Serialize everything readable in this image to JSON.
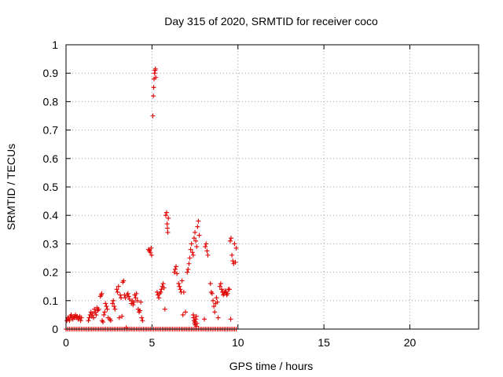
{
  "chart_data": {
    "type": "scatter",
    "title": "Day 315 of 2020, SRMTID for receiver coco",
    "xlabel": "GPS time / hours",
    "ylabel": "SRMTID / TECUs",
    "xlim": [
      0,
      24
    ],
    "ylim": [
      0,
      1
    ],
    "xticks": [
      0,
      5,
      10,
      15,
      20
    ],
    "xtick_labels": [
      "0",
      "5",
      "10",
      "15",
      "20"
    ],
    "yticks": [
      0,
      0.1,
      0.2,
      0.3,
      0.4,
      0.5,
      0.6,
      0.7,
      0.8,
      0.9,
      1
    ],
    "ytick_labels": [
      "0",
      "0.1",
      "0.2",
      "0.3",
      "0.4",
      "0.5",
      "0.6",
      "0.7",
      "0.8",
      "0.9",
      "1"
    ],
    "grid": true,
    "marker": "+",
    "color": "#e00000",
    "zero_baseline": {
      "x_start": 0,
      "x_end": 9.9,
      "step": 0.1,
      "y": 0
    },
    "series": [
      {
        "name": "SRMTID",
        "points": [
          [
            0.05,
            0.03
          ],
          [
            0.1,
            0.04
          ],
          [
            0.15,
            0.035
          ],
          [
            0.2,
            0.03
          ],
          [
            0.25,
            0.045
          ],
          [
            0.3,
            0.05
          ],
          [
            0.35,
            0.04
          ],
          [
            0.4,
            0.035
          ],
          [
            0.45,
            0.045
          ],
          [
            0.5,
            0.04
          ],
          [
            0.55,
            0.05
          ],
          [
            0.6,
            0.04
          ],
          [
            0.65,
            0.045
          ],
          [
            0.7,
            0.035
          ],
          [
            0.75,
            0.04
          ],
          [
            0.8,
            0.045
          ],
          [
            0.85,
            0.03
          ],
          [
            0.9,
            0.04
          ],
          [
            1.3,
            0.03
          ],
          [
            1.35,
            0.04
          ],
          [
            1.4,
            0.05
          ],
          [
            1.45,
            0.06
          ],
          [
            1.5,
            0.045
          ],
          [
            1.55,
            0.055
          ],
          [
            1.6,
            0.04
          ],
          [
            1.65,
            0.07
          ],
          [
            1.7,
            0.06
          ],
          [
            1.75,
            0.05
          ],
          [
            1.8,
            0.075
          ],
          [
            1.85,
            0.065
          ],
          [
            1.9,
            0.07
          ],
          [
            2.0,
            0.115
          ],
          [
            2.05,
            0.12
          ],
          [
            2.08,
            0.125
          ],
          [
            2.1,
            0.03
          ],
          [
            2.15,
            0.025
          ],
          [
            2.2,
            0.05
          ],
          [
            2.25,
            0.06
          ],
          [
            2.3,
            0.09
          ],
          [
            2.35,
            0.08
          ],
          [
            2.4,
            0.07
          ],
          [
            2.45,
            0.04
          ],
          [
            2.55,
            0.035
          ],
          [
            2.6,
            0.03
          ],
          [
            2.7,
            0.09
          ],
          [
            2.75,
            0.1
          ],
          [
            2.8,
            0.08
          ],
          [
            2.85,
            0.07
          ],
          [
            2.95,
            0.14
          ],
          [
            3.0,
            0.13
          ],
          [
            3.05,
            0.15
          ],
          [
            3.1,
            0.04
          ],
          [
            3.15,
            0.12
          ],
          [
            3.2,
            0.11
          ],
          [
            3.25,
            0.045
          ],
          [
            3.3,
            0.165
          ],
          [
            3.35,
            0.17
          ],
          [
            3.4,
            0.12
          ],
          [
            3.45,
            0.11
          ],
          [
            3.5,
            0.005
          ],
          [
            3.55,
            0.12
          ],
          [
            3.6,
            0.125
          ],
          [
            3.65,
            0.115
          ],
          [
            3.7,
            0.105
          ],
          [
            3.8,
            0.09
          ],
          [
            3.85,
            0.1
          ],
          [
            3.9,
            0.085
          ],
          [
            3.95,
            0.095
          ],
          [
            4.0,
            0.12
          ],
          [
            4.05,
            0.11
          ],
          [
            4.1,
            0.125
          ],
          [
            4.15,
            0.1
          ],
          [
            4.2,
            0.07
          ],
          [
            4.25,
            0.06
          ],
          [
            4.3,
            0.065
          ],
          [
            4.35,
            0.095
          ],
          [
            4.4,
            0.04
          ],
          [
            4.45,
            0.03
          ],
          [
            4.8,
            0.28
          ],
          [
            4.85,
            0.275
          ],
          [
            4.9,
            0.27
          ],
          [
            4.95,
            0.285
          ],
          [
            4.98,
            0.26
          ],
          [
            5.05,
            0.75
          ],
          [
            5.08,
            0.82
          ],
          [
            5.1,
            0.85
          ],
          [
            5.12,
            0.88
          ],
          [
            5.15,
            0.9
          ],
          [
            5.18,
            0.91
          ],
          [
            5.2,
            0.915
          ],
          [
            5.22,
            0.885
          ],
          [
            5.3,
            0.13
          ],
          [
            5.35,
            0.12
          ],
          [
            5.4,
            0.11
          ],
          [
            5.45,
            0.125
          ],
          [
            5.5,
            0.13
          ],
          [
            5.55,
            0.14
          ],
          [
            5.6,
            0.15
          ],
          [
            5.65,
            0.16
          ],
          [
            5.7,
            0.145
          ],
          [
            5.8,
            0.4
          ],
          [
            5.85,
            0.41
          ],
          [
            5.88,
            0.37
          ],
          [
            5.9,
            0.355
          ],
          [
            5.92,
            0.34
          ],
          [
            5.95,
            0.39
          ],
          [
            5.75,
            0.07
          ],
          [
            6.3,
            0.2
          ],
          [
            6.35,
            0.21
          ],
          [
            6.4,
            0.22
          ],
          [
            6.45,
            0.195
          ],
          [
            6.55,
            0.16
          ],
          [
            6.6,
            0.15
          ],
          [
            6.65,
            0.14
          ],
          [
            6.7,
            0.13
          ],
          [
            6.75,
            0.17
          ],
          [
            6.8,
            0.05
          ],
          [
            6.85,
            0.13
          ],
          [
            6.95,
            0.06
          ],
          [
            7.05,
            0.2
          ],
          [
            7.1,
            0.21
          ],
          [
            7.15,
            0.23
          ],
          [
            7.2,
            0.25
          ],
          [
            7.25,
            0.28
          ],
          [
            7.3,
            0.3
          ],
          [
            7.35,
            0.27
          ],
          [
            7.4,
            0.26
          ],
          [
            7.45,
            0.32
          ],
          [
            7.5,
            0.34
          ],
          [
            7.55,
            0.31
          ],
          [
            7.6,
            0.29
          ],
          [
            7.65,
            0.36
          ],
          [
            7.7,
            0.38
          ],
          [
            7.75,
            0.33
          ],
          [
            7.4,
            0.05
          ],
          [
            7.42,
            0.04
          ],
          [
            7.45,
            0.03
          ],
          [
            7.48,
            0.02
          ],
          [
            7.5,
            0.025
          ],
          [
            7.52,
            0.015
          ],
          [
            7.55,
            0.035
          ],
          [
            7.58,
            0.045
          ],
          [
            7.6,
            0.01
          ],
          [
            7.62,
            0.02
          ],
          [
            8.1,
            0.29
          ],
          [
            8.15,
            0.3
          ],
          [
            8.2,
            0.275
          ],
          [
            8.25,
            0.26
          ],
          [
            8.05,
            0.035
          ],
          [
            8.4,
            0.16
          ],
          [
            8.45,
            0.13
          ],
          [
            8.5,
            0.125
          ],
          [
            8.55,
            0.1
          ],
          [
            8.6,
            0.08
          ],
          [
            8.65,
            0.06
          ],
          [
            8.7,
            0.09
          ],
          [
            8.75,
            0.11
          ],
          [
            8.8,
            0.095
          ],
          [
            8.85,
            0.04
          ],
          [
            8.95,
            0.15
          ],
          [
            9.0,
            0.16
          ],
          [
            9.05,
            0.14
          ],
          [
            9.1,
            0.13
          ],
          [
            9.15,
            0.12
          ],
          [
            9.2,
            0.125
          ],
          [
            9.25,
            0.135
          ],
          [
            9.3,
            0.13
          ],
          [
            9.35,
            0.12
          ],
          [
            9.4,
            0.125
          ],
          [
            9.45,
            0.14
          ],
          [
            9.55,
            0.31
          ],
          [
            9.6,
            0.32
          ],
          [
            9.65,
            0.26
          ],
          [
            9.7,
            0.24
          ],
          [
            9.75,
            0.23
          ],
          [
            9.8,
            0.3
          ],
          [
            9.85,
            0.235
          ],
          [
            9.9,
            0.285
          ],
          [
            9.5,
            0.14
          ],
          [
            9.58,
            0.035
          ]
        ]
      }
    ]
  }
}
